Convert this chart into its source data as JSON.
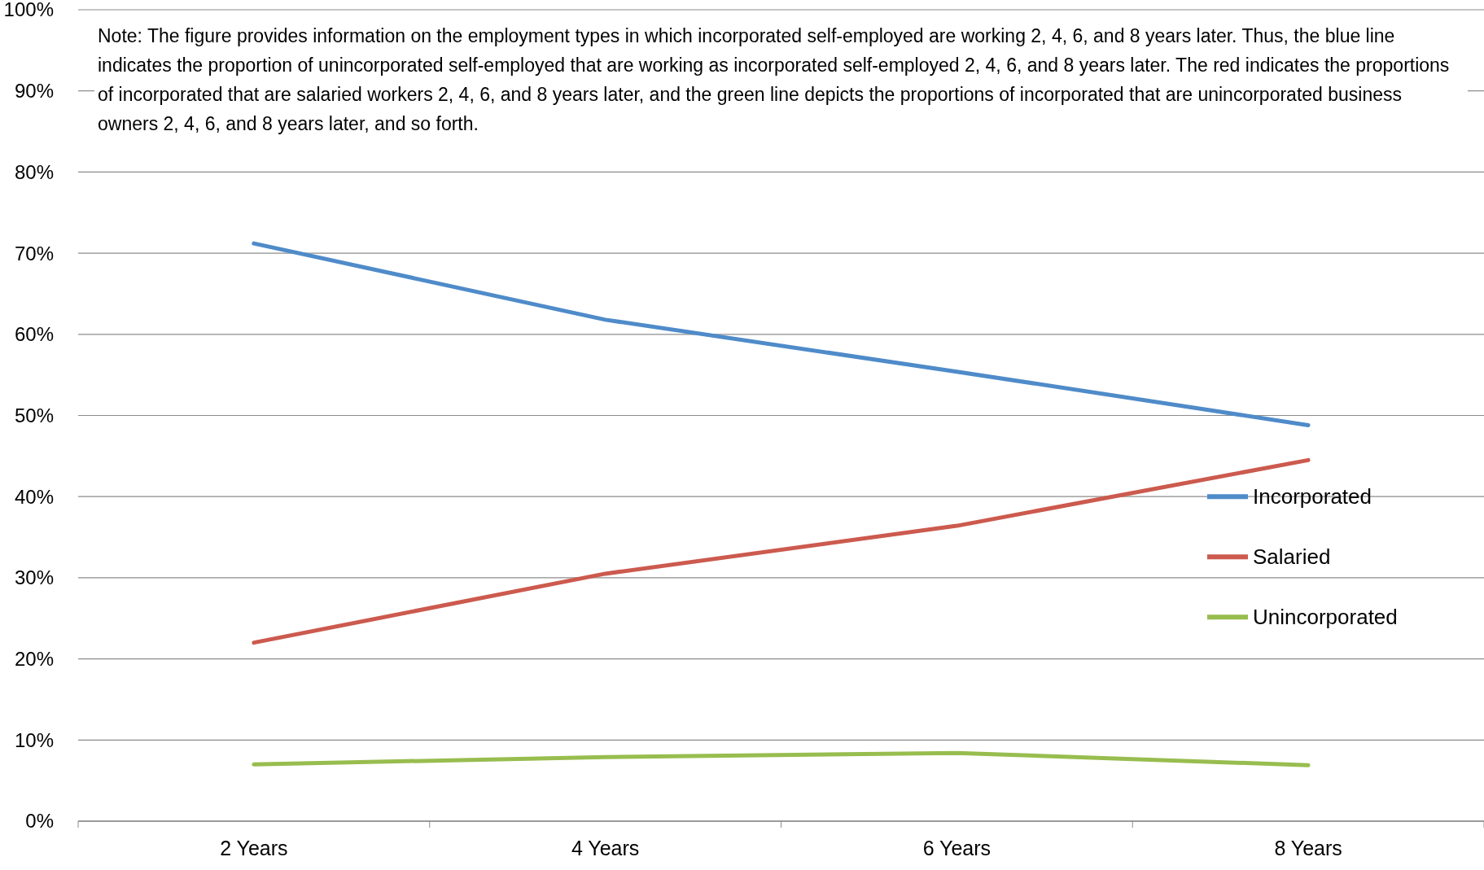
{
  "chart_data": {
    "type": "line",
    "categories": [
      "2 Years",
      "4 Years",
      "6 Years",
      "8 Years"
    ],
    "series": [
      {
        "name": "Incorporated",
        "color": "#4f8bc9",
        "values": [
          71.2,
          61.8,
          55.4,
          48.8
        ]
      },
      {
        "name": "Salaried",
        "color": "#cc5a4e",
        "values": [
          22.0,
          30.5,
          36.4,
          44.5
        ]
      },
      {
        "name": "Unincorporated",
        "color": "#98bd4f",
        "values": [
          7.0,
          7.9,
          8.4,
          6.9
        ]
      }
    ],
    "ylim": [
      0,
      100
    ],
    "yticks": [
      {
        "value": 0,
        "label": "0%"
      },
      {
        "value": 10,
        "label": "10%"
      },
      {
        "value": 20,
        "label": "20%"
      },
      {
        "value": 30,
        "label": "30%"
      },
      {
        "value": 40,
        "label": "40%"
      },
      {
        "value": 50,
        "label": "50%"
      },
      {
        "value": 60,
        "label": "60%"
      },
      {
        "value": 70,
        "label": "70%"
      },
      {
        "value": 80,
        "label": "80%"
      },
      {
        "value": 90,
        "label": "90%"
      },
      {
        "value": 100,
        "label": "100%"
      }
    ],
    "grid": "y",
    "legend": "right",
    "marker": "none",
    "line_style": "solid",
    "annotations": [
      "Note: The figure provides information on the employment types in which incorporated self-employed are working 2, 4, 6, and 8 years later. Thus, the blue line indicates the proportion of unincorporated self-employed that are working as incorporated self-employed 2, 4, 6, and 8 years later. The red indicates the proportions of incorporated that are salaried workers 2, 4, 6, and 8 years later, and the green line depicts the proportions of incorporated that are unincorporated business owners 2, 4, 6, and 8 years later, and so forth."
    ]
  }
}
